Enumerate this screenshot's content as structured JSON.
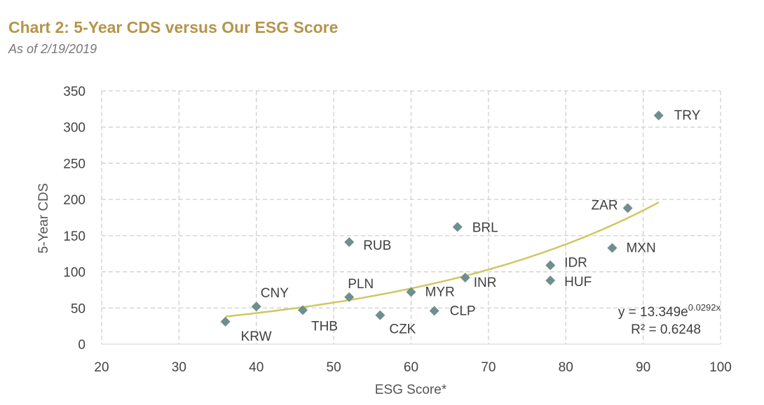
{
  "header": {
    "title": "Chart 2: 5-Year CDS versus Our ESG Score",
    "subtitle": "As of 2/19/2019"
  },
  "chart_data": {
    "type": "scatter",
    "title": "Chart 2: 5-Year CDS versus Our ESG Score",
    "subtitle": "As of 2/19/2019",
    "xlabel": "ESG Score*",
    "ylabel": "5-Year CDS",
    "xlim": [
      20,
      100
    ],
    "ylim": [
      0,
      350
    ],
    "xticks": [
      20,
      30,
      40,
      50,
      60,
      70,
      80,
      90,
      100
    ],
    "yticks": [
      0,
      50,
      100,
      150,
      200,
      250,
      300,
      350
    ],
    "grid": true,
    "gridstyle": "dashed",
    "marker": "diamond",
    "marker_color": "#6f8f8e",
    "trend_color": "#cfc860",
    "points": [
      {
        "label": "KRW",
        "x": 36,
        "y": 31
      },
      {
        "label": "CNY",
        "x": 40,
        "y": 52
      },
      {
        "label": "THB",
        "x": 46,
        "y": 47
      },
      {
        "label": "PLN",
        "x": 52,
        "y": 65
      },
      {
        "label": "RUB",
        "x": 52,
        "y": 141
      },
      {
        "label": "CZK",
        "x": 56,
        "y": 40
      },
      {
        "label": "MYR",
        "x": 60,
        "y": 72
      },
      {
        "label": "CLP",
        "x": 63,
        "y": 46
      },
      {
        "label": "BRL",
        "x": 66,
        "y": 162
      },
      {
        "label": "INR",
        "x": 67,
        "y": 92
      },
      {
        "label": "IDR",
        "x": 78,
        "y": 109
      },
      {
        "label": "HUF",
        "x": 78,
        "y": 88
      },
      {
        "label": "MXN",
        "x": 86,
        "y": 133
      },
      {
        "label": "ZAR",
        "x": 88,
        "y": 188
      },
      {
        "label": "TRY",
        "x": 92,
        "y": 316
      }
    ],
    "trendline": {
      "type": "exponential",
      "a": 13.349,
      "b": 0.0292,
      "x_range": [
        36,
        92
      ],
      "equation_base": "y = 13.349e",
      "equation_exponent": "0.0292x",
      "r_squared_text": "R² = 0.6248"
    }
  }
}
